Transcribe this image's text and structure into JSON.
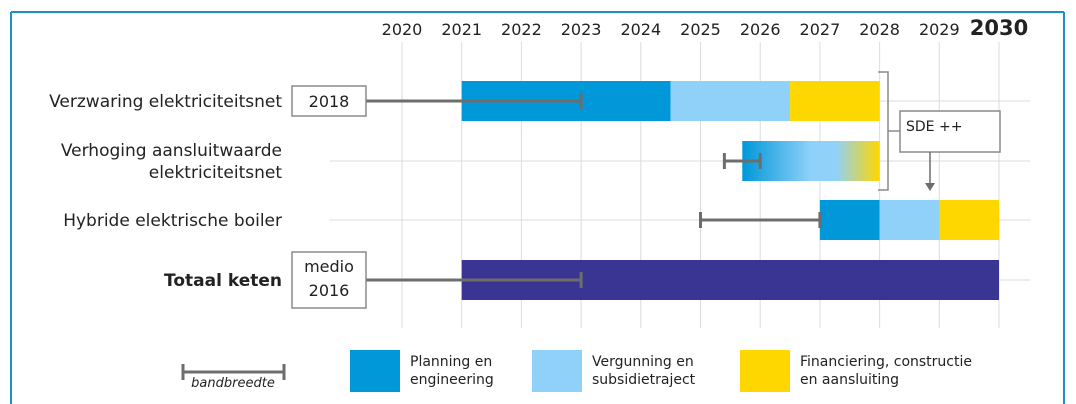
{
  "chart_data": {
    "type": "gantt",
    "x_axis": {
      "range": [
        2020,
        2030
      ],
      "ticks": [
        "2020",
        "2021",
        "2022",
        "2023",
        "2024",
        "2025",
        "2026",
        "2027",
        "2028",
        "2029",
        "2030"
      ],
      "grid": true
    },
    "rows": [
      {
        "label_lines": [
          "Verzwaring elektriciteitsnet"
        ],
        "bold": false,
        "box_lines": [
          "2018"
        ],
        "range_bar": {
          "start": 2018,
          "end": 2023
        },
        "segments": [
          {
            "phase": "planning",
            "start": 2021,
            "end": 2024.5
          },
          {
            "phase": "vergunning",
            "start": 2024.5,
            "end": 2026.5
          },
          {
            "phase": "financiering",
            "start": 2026.5,
            "end": 2028
          }
        ]
      },
      {
        "label_lines": [
          "Verhoging aansluitwaarde",
          "elektriciteitsnet"
        ],
        "bold": false,
        "range_bar": {
          "start": 2025.4,
          "end": 2026
        },
        "gradient": {
          "start": 2025.7,
          "end": 2028
        }
      },
      {
        "label_lines": [
          "Hybride elektrische boiler"
        ],
        "bold": false,
        "range_bar": {
          "start": 2025,
          "end": 2027
        },
        "segments": [
          {
            "phase": "planning",
            "start": 2027,
            "end": 2028
          },
          {
            "phase": "vergunning",
            "start": 2028,
            "end": 2029
          },
          {
            "phase": "financiering",
            "start": 2029,
            "end": 2030
          }
        ]
      },
      {
        "label_lines": [
          "Totaal keten"
        ],
        "bold": true,
        "box_lines": [
          "medio",
          "2016"
        ],
        "range_bar": {
          "start": 2016,
          "end": 2023
        },
        "segments": [
          {
            "phase": "totaal",
            "start": 2021,
            "end": 2030
          }
        ]
      }
    ],
    "annotation": {
      "text": "SDE ++"
    },
    "legend": {
      "range_label": "bandbreedte",
      "items": [
        {
          "phase": "planning",
          "lines": [
            "Planning en",
            "engineering"
          ]
        },
        {
          "phase": "vergunning",
          "lines": [
            "Vergunning en",
            "subsidietraject"
          ]
        },
        {
          "phase": "financiering",
          "lines": [
            "Financiering, constructie",
            "en aansluiting"
          ]
        }
      ]
    }
  },
  "colors": {
    "planning": "#0098d8",
    "vergunning": "#8fd1f9",
    "financiering": "#ffd700",
    "totaal": "#3a3592",
    "range_bar": "#6d6d6d",
    "grid": "#dcdcdc",
    "frame": "#1e8fc8",
    "faded_tick": "#9a9a9a"
  }
}
